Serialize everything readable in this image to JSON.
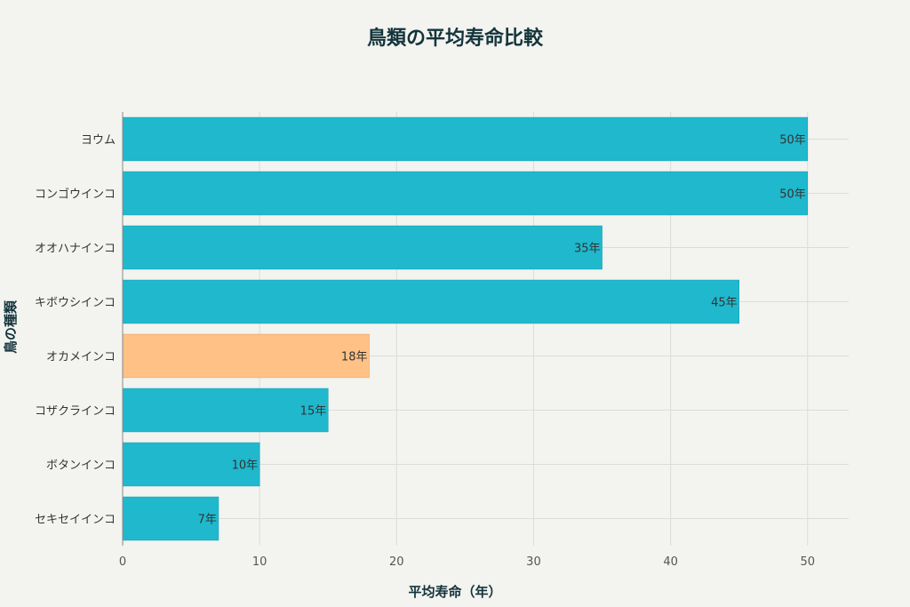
{
  "chart_data": {
    "type": "bar",
    "orientation": "horizontal",
    "title": "鳥類の平均寿命比較",
    "xlabel": "平均寿命（年）",
    "ylabel": "鳥の種類",
    "categories": [
      "ヨウム",
      "コンゴウインコ",
      "オオハナインコ",
      "キボウシインコ",
      "オカメインコ",
      "コザクラインコ",
      "ボタンインコ",
      "セキセイインコ"
    ],
    "values": [
      50,
      50,
      35,
      45,
      18,
      15,
      10,
      7
    ],
    "data_labels": [
      "50年",
      "50年",
      "35年",
      "45年",
      "18年",
      "15年",
      "10年",
      "7年"
    ],
    "xlim": [
      0,
      53
    ],
    "xticks": [
      0,
      10,
      20,
      30,
      40,
      50
    ],
    "grid": true,
    "highlight_index": 4,
    "colors": {
      "bar": "#1fb8cd",
      "highlight": "#ffc185",
      "background": "#f3f3f0"
    }
  }
}
